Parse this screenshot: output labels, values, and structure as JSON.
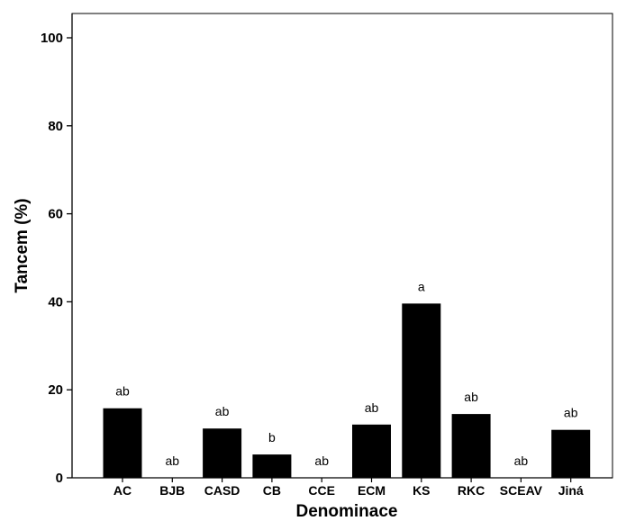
{
  "chart_data": {
    "type": "bar",
    "title": "",
    "xlabel": "Denominace",
    "ylabel": "Tancem (%)",
    "ylim": [
      0,
      104
    ],
    "yticks": [
      0,
      20,
      40,
      60,
      80,
      100
    ],
    "categories": [
      "AC",
      "BJB",
      "CASD",
      "CB",
      "CCE",
      "ECM",
      "KS",
      "RKC",
      "SCEAV",
      "Jiná"
    ],
    "values": [
      15.8,
      0,
      11.2,
      5.3,
      0,
      12.1,
      39.6,
      14.5,
      0,
      10.9
    ],
    "group_labels": [
      "ab",
      "ab",
      "ab",
      "b",
      "ab",
      "ab",
      "a",
      "ab",
      "ab",
      "ab"
    ],
    "bar_color": "#000000",
    "grid": false,
    "legend": "none"
  }
}
